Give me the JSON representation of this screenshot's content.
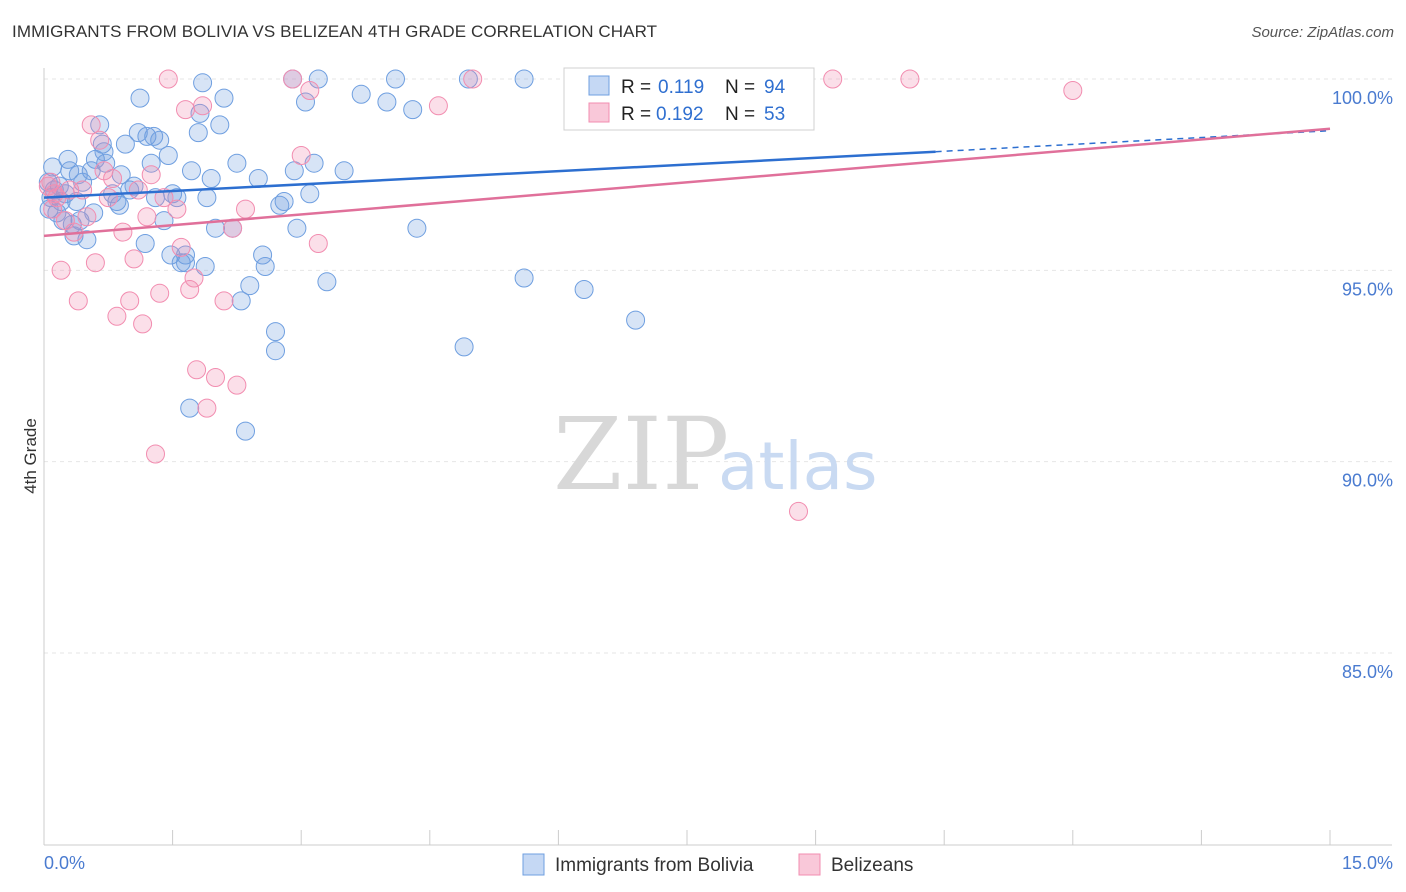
{
  "header": {
    "title": "IMMIGRANTS FROM BOLIVIA VS BELIZEAN 4TH GRADE CORRELATION CHART",
    "source": "Source: ZipAtlas.com"
  },
  "watermark": {
    "zip": "ZIP",
    "atlas": "atlas"
  },
  "colors": {
    "blue": "#6f9fe0",
    "blue_line": "#2d6fd0",
    "pink": "#f28db0",
    "pink_line": "#e0709a",
    "axis_text": "#4a7bd0"
  },
  "stats": [
    {
      "series": "Immigrants from Bolivia",
      "r_label": "R =",
      "r": "0.119",
      "n_label": "N =",
      "n": "94"
    },
    {
      "series": "Belizeans",
      "r_label": "R =",
      "r": "0.192",
      "n_label": "N =",
      "n": "53"
    }
  ],
  "chart_data": {
    "type": "scatter",
    "title": "IMMIGRANTS FROM BOLIVIA VS BELIZEAN 4TH GRADE CORRELATION CHART",
    "xlabel": "",
    "ylabel": "4th Grade",
    "xlim": [
      0,
      15
    ],
    "ylim": [
      80.5,
      100.3
    ],
    "x_tick_labels": [
      {
        "value": 0,
        "label": "0.0%"
      },
      {
        "value": 15,
        "label": "15.0%"
      }
    ],
    "y_tick_labels": [
      {
        "value": 100,
        "label": "100.0%"
      },
      {
        "value": 95,
        "label": "95.0%"
      },
      {
        "value": 90,
        "label": "90.0%"
      },
      {
        "value": 85,
        "label": "85.0%"
      }
    ],
    "grid": true,
    "legend": "bottom-center",
    "series": [
      {
        "name": "Immigrants from Bolivia",
        "color": "#6f9fe0",
        "trend": {
          "x0": 0,
          "y0": 96.9,
          "x1": 10.4,
          "y1": 98.1,
          "dash_to_x": 15,
          "dash_to_y": 98.65
        },
        "points": [
          [
            0.05,
            97.3
          ],
          [
            0.08,
            96.9
          ],
          [
            0.1,
            97.7
          ],
          [
            0.12,
            97.1
          ],
          [
            0.15,
            96.5
          ],
          [
            0.18,
            97.2
          ],
          [
            0.2,
            96.8
          ],
          [
            0.25,
            97.0
          ],
          [
            0.28,
            97.9
          ],
          [
            0.3,
            97.6
          ],
          [
            0.33,
            96.2
          ],
          [
            0.35,
            95.9
          ],
          [
            0.38,
            96.8
          ],
          [
            0.4,
            97.5
          ],
          [
            0.42,
            96.3
          ],
          [
            0.45,
            97.3
          ],
          [
            0.5,
            95.8
          ],
          [
            0.55,
            97.6
          ],
          [
            0.58,
            96.5
          ],
          [
            0.6,
            97.9
          ],
          [
            0.65,
            98.8
          ],
          [
            0.68,
            98.3
          ],
          [
            0.7,
            98.1
          ],
          [
            0.72,
            97.8
          ],
          [
            0.8,
            97.0
          ],
          [
            0.85,
            96.8
          ],
          [
            0.88,
            96.7
          ],
          [
            0.9,
            97.5
          ],
          [
            0.95,
            98.3
          ],
          [
            1.0,
            97.1
          ],
          [
            1.05,
            97.2
          ],
          [
            1.1,
            98.6
          ],
          [
            1.12,
            99.5
          ],
          [
            1.18,
            95.7
          ],
          [
            1.2,
            98.5
          ],
          [
            1.25,
            97.8
          ],
          [
            1.28,
            98.5
          ],
          [
            1.3,
            96.9
          ],
          [
            1.35,
            98.4
          ],
          [
            1.4,
            96.3
          ],
          [
            1.45,
            98.0
          ],
          [
            1.48,
            95.4
          ],
          [
            1.5,
            97.0
          ],
          [
            1.55,
            96.9
          ],
          [
            1.6,
            95.2
          ],
          [
            1.65,
            95.2
          ],
          [
            1.65,
            95.4
          ],
          [
            1.7,
            91.4
          ],
          [
            1.72,
            97.6
          ],
          [
            1.8,
            98.6
          ],
          [
            1.82,
            99.1
          ],
          [
            1.85,
            99.9
          ],
          [
            1.88,
            95.1
          ],
          [
            1.9,
            96.9
          ],
          [
            1.95,
            97.4
          ],
          [
            2.0,
            96.1
          ],
          [
            2.05,
            98.8
          ],
          [
            2.1,
            99.5
          ],
          [
            2.2,
            96.1
          ],
          [
            2.25,
            97.8
          ],
          [
            2.3,
            94.2
          ],
          [
            2.35,
            90.8
          ],
          [
            2.4,
            94.6
          ],
          [
            2.5,
            97.4
          ],
          [
            2.55,
            95.4
          ],
          [
            2.58,
            95.1
          ],
          [
            2.7,
            93.4
          ],
          [
            2.7,
            92.9
          ],
          [
            2.75,
            96.7
          ],
          [
            2.8,
            96.8
          ],
          [
            2.9,
            100.0
          ],
          [
            2.92,
            97.6
          ],
          [
            2.95,
            96.1
          ],
          [
            3.05,
            99.4
          ],
          [
            3.1,
            97.0
          ],
          [
            3.15,
            97.8
          ],
          [
            3.2,
            100.0
          ],
          [
            3.3,
            94.7
          ],
          [
            3.5,
            97.6
          ],
          [
            3.7,
            99.6
          ],
          [
            4.0,
            99.4
          ],
          [
            4.1,
            100.0
          ],
          [
            4.3,
            99.2
          ],
          [
            4.35,
            96.1
          ],
          [
            4.9,
            93.0
          ],
          [
            4.95,
            100.0
          ],
          [
            5.6,
            94.8
          ],
          [
            5.6,
            100.0
          ],
          [
            6.3,
            94.5
          ],
          [
            6.9,
            93.7
          ],
          [
            8.1,
            100.0
          ],
          [
            8.8,
            100.0
          ],
          [
            0.06,
            96.6
          ],
          [
            0.22,
            96.3
          ]
        ]
      },
      {
        "name": "Belizeans",
        "color": "#f28db0",
        "trend": {
          "x0": 0,
          "y0": 95.9,
          "x1": 15,
          "y1": 98.7
        },
        "points": [
          [
            0.05,
            97.2
          ],
          [
            0.1,
            96.6
          ],
          [
            0.15,
            96.9
          ],
          [
            0.2,
            95.0
          ],
          [
            0.25,
            96.3
          ],
          [
            0.3,
            97.1
          ],
          [
            0.35,
            96.0
          ],
          [
            0.4,
            94.2
          ],
          [
            0.45,
            97.1
          ],
          [
            0.5,
            96.4
          ],
          [
            0.55,
            98.8
          ],
          [
            0.6,
            95.2
          ],
          [
            0.65,
            98.4
          ],
          [
            0.7,
            97.6
          ],
          [
            0.75,
            96.9
          ],
          [
            0.8,
            97.4
          ],
          [
            0.85,
            93.8
          ],
          [
            0.92,
            96.0
          ],
          [
            1.0,
            94.2
          ],
          [
            1.05,
            95.3
          ],
          [
            1.1,
            97.1
          ],
          [
            1.15,
            93.6
          ],
          [
            1.2,
            96.4
          ],
          [
            1.25,
            97.5
          ],
          [
            1.3,
            90.2
          ],
          [
            1.35,
            94.4
          ],
          [
            1.4,
            96.9
          ],
          [
            1.45,
            100.0
          ],
          [
            1.55,
            96.6
          ],
          [
            1.6,
            95.6
          ],
          [
            1.65,
            99.2
          ],
          [
            1.7,
            94.5
          ],
          [
            1.75,
            94.8
          ],
          [
            1.78,
            92.4
          ],
          [
            1.85,
            99.3
          ],
          [
            1.9,
            91.4
          ],
          [
            2.0,
            92.2
          ],
          [
            2.1,
            94.2
          ],
          [
            2.2,
            96.1
          ],
          [
            2.25,
            92.0
          ],
          [
            2.35,
            96.6
          ],
          [
            2.9,
            100.0
          ],
          [
            3.0,
            98.0
          ],
          [
            3.1,
            99.7
          ],
          [
            3.2,
            95.7
          ],
          [
            4.6,
            99.3
          ],
          [
            5.0,
            100.0
          ],
          [
            8.8,
            88.7
          ],
          [
            9.2,
            100.0
          ],
          [
            10.1,
            100.0
          ],
          [
            12.0,
            99.7
          ],
          [
            0.08,
            97.3
          ],
          [
            0.12,
            97.0
          ]
        ]
      }
    ]
  },
  "legend": {
    "items": [
      {
        "label": "Immigrants from Bolivia",
        "color": "#6f9fe0"
      },
      {
        "label": "Belizeans",
        "color": "#f28db0"
      }
    ]
  }
}
